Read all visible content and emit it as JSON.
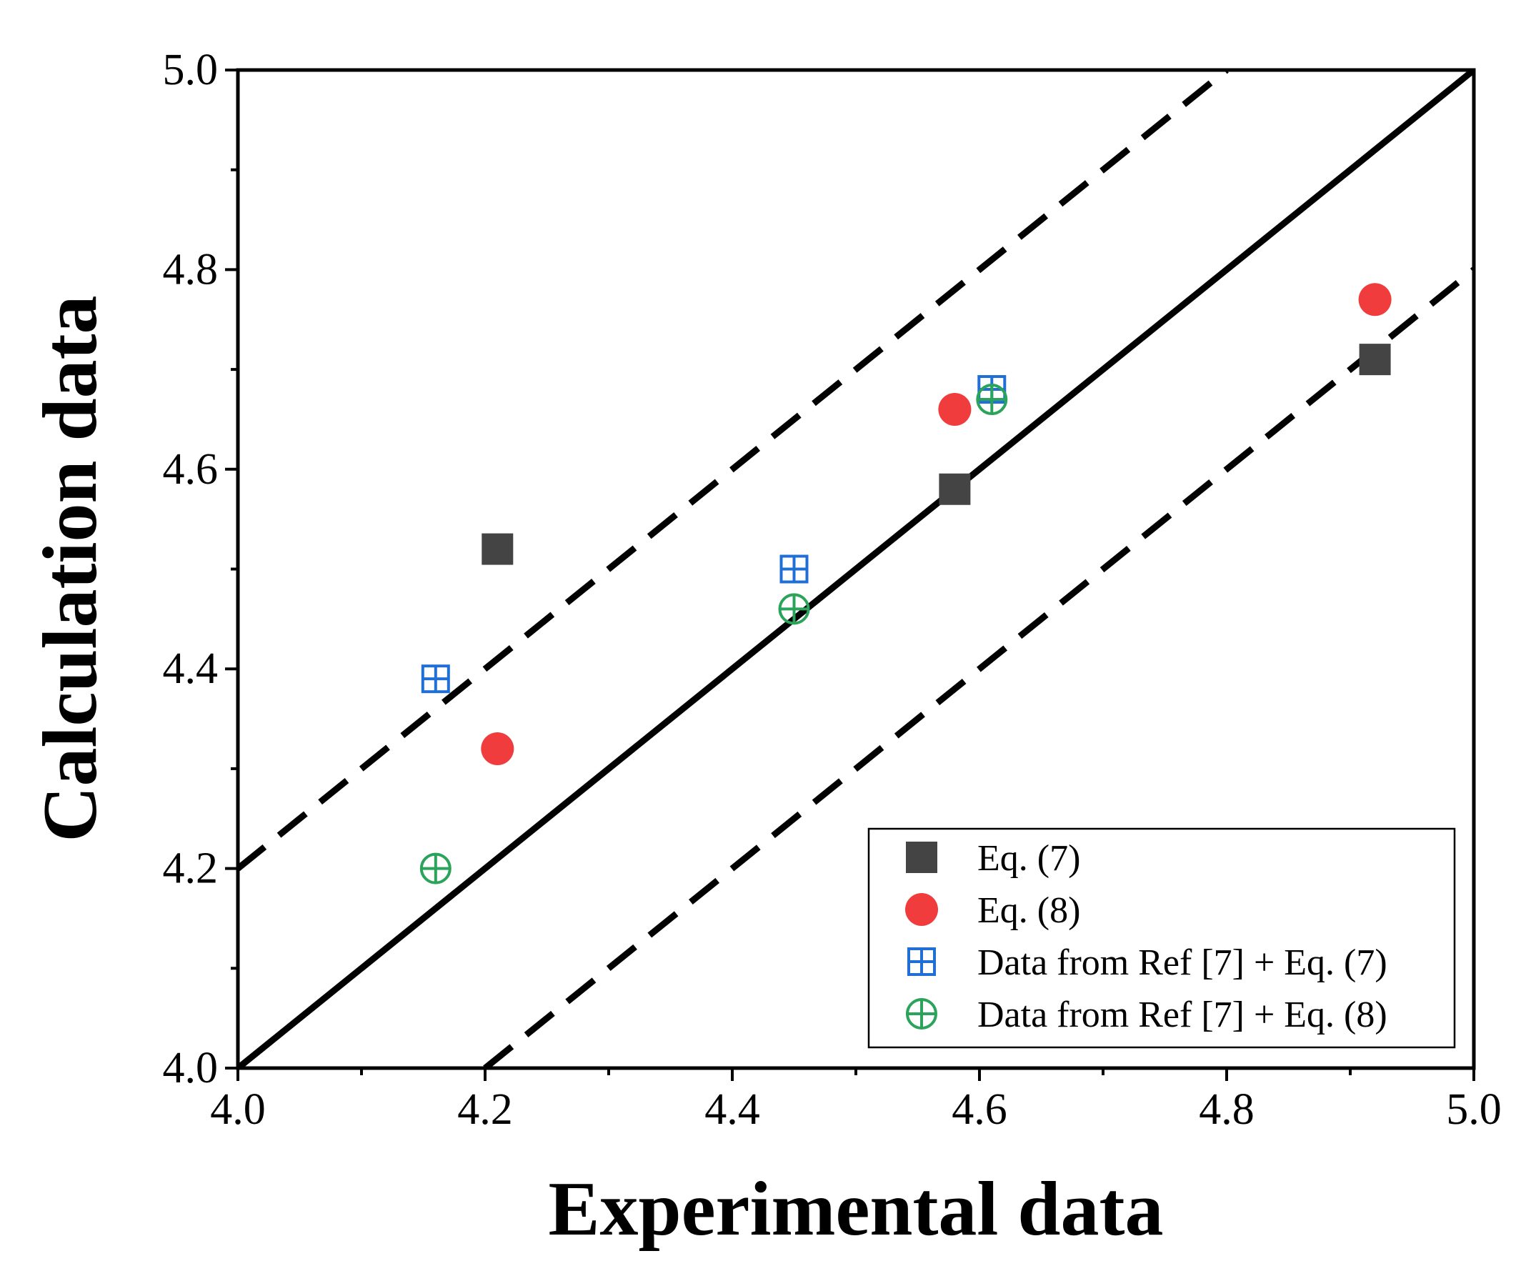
{
  "chart_data": {
    "type": "scatter",
    "title": "",
    "xlabel": "Experimental data",
    "ylabel": "Calculation data",
    "xlim": [
      4.0,
      5.0
    ],
    "ylim": [
      4.0,
      5.0
    ],
    "major_ticks": [
      4.0,
      4.2,
      4.4,
      4.6,
      4.8,
      5.0
    ],
    "tick_labels": [
      "4.0",
      "4.2",
      "4.4",
      "4.6",
      "4.8",
      "5.0"
    ],
    "minor_ticks": [
      4.1,
      4.3,
      4.5,
      4.7,
      4.9
    ],
    "grid": false,
    "legend_position": "bottom-right",
    "reference_lines": [
      {
        "name": "y = x",
        "style": "solid",
        "points": [
          [
            4.0,
            4.0
          ],
          [
            5.0,
            5.0
          ]
        ]
      },
      {
        "name": "upper bound",
        "style": "dashed",
        "points": [
          [
            4.0,
            4.2
          ],
          [
            4.8,
            5.0
          ]
        ]
      },
      {
        "name": "lower bound",
        "style": "dashed",
        "points": [
          [
            4.2,
            4.0
          ],
          [
            5.0,
            4.8
          ]
        ]
      }
    ],
    "series": [
      {
        "name": "Eq. (7)",
        "marker": "filled-square",
        "color": "#444444",
        "points": [
          [
            4.21,
            4.52
          ],
          [
            4.58,
            4.58
          ],
          [
            4.92,
            4.71
          ]
        ]
      },
      {
        "name": "Eq. (8)",
        "marker": "filled-circle",
        "color": "#f03c3c",
        "points": [
          [
            4.21,
            4.32
          ],
          [
            4.58,
            4.66
          ],
          [
            4.92,
            4.77
          ]
        ]
      },
      {
        "name": "Data from Ref [7] + Eq. (7)",
        "marker": "crossed-square",
        "color": "#1f6fd6",
        "points": [
          [
            4.16,
            4.39
          ],
          [
            4.45,
            4.5
          ],
          [
            4.61,
            4.68
          ]
        ]
      },
      {
        "name": "Data from Ref [7] + Eq. (8)",
        "marker": "crossed-circle",
        "color": "#2ba35a",
        "points": [
          [
            4.16,
            4.2
          ],
          [
            4.45,
            4.46
          ],
          [
            4.61,
            4.67
          ]
        ]
      }
    ]
  }
}
